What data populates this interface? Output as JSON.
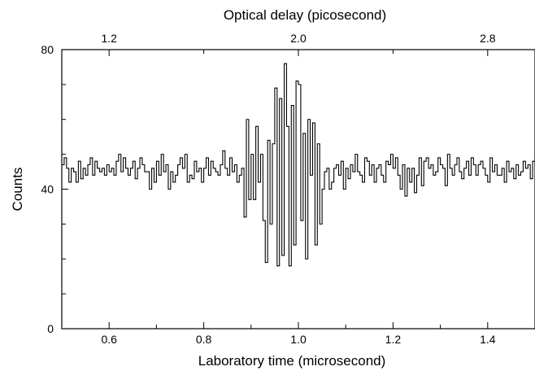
{
  "chart_data": {
    "type": "line",
    "step": true,
    "xlabel": "Laboratory time (microsecond)",
    "ylabel": "Counts",
    "top_xlabel": "Optical delay (picosecond)",
    "xlim": [
      0.5,
      1.5
    ],
    "ylim": [
      0,
      80
    ],
    "x_ticks": [
      "0.6",
      "0.8",
      "1.0",
      "1.2",
      "1.4"
    ],
    "y_ticks": [
      "0",
      "40",
      "80"
    ],
    "top_ticks": [
      "1.2",
      "2.0",
      "2.8"
    ],
    "top_tick_positions": [
      0.6,
      1.0,
      1.4
    ],
    "grid": false,
    "series": [
      {
        "x_start": 0.5,
        "x_step": 0.005,
        "values": [
          47,
          49,
          46,
          42,
          46,
          45,
          42,
          48,
          43,
          46,
          44,
          47,
          49,
          44,
          48,
          46,
          45,
          46,
          44,
          47,
          45,
          46,
          44,
          48,
          50,
          45,
          49,
          46,
          44,
          46,
          48,
          43,
          46,
          49,
          47,
          45,
          45,
          40,
          46,
          42,
          48,
          44,
          50,
          45,
          47,
          40,
          45,
          42,
          44,
          47,
          49,
          46,
          50,
          42,
          44,
          43,
          48,
          45,
          46,
          42,
          46,
          49,
          44,
          48,
          46,
          45,
          44,
          47,
          51,
          46,
          44,
          49,
          45,
          47,
          42,
          44,
          46,
          32,
          60,
          37,
          50,
          37,
          58,
          42,
          50,
          31,
          19,
          54,
          30,
          53,
          69,
          18,
          66,
          21,
          76,
          58,
          18,
          64,
          24,
          71,
          70,
          31,
          56,
          20,
          60,
          44,
          59,
          24,
          53,
          30,
          40,
          45,
          46,
          40,
          42,
          46,
          47,
          44,
          48,
          40,
          46,
          43,
          47,
          45,
          50,
          45,
          44,
          42,
          49,
          48,
          44,
          47,
          42,
          46,
          47,
          44,
          42,
          48,
          47,
          50,
          46,
          49,
          44,
          40,
          47,
          38,
          46,
          42,
          46,
          39,
          44,
          49,
          41,
          48,
          49,
          46,
          47,
          44,
          45,
          49,
          47,
          46,
          41,
          50,
          46,
          44,
          47,
          49,
          45,
          43,
          46,
          48,
          44,
          49,
          47,
          44,
          47,
          48,
          46,
          44,
          42,
          49,
          45,
          47,
          44,
          44,
          46,
          42,
          48,
          45,
          46,
          43,
          47,
          44,
          45,
          48,
          46,
          47,
          43,
          48,
          50,
          45
        ]
      }
    ]
  }
}
